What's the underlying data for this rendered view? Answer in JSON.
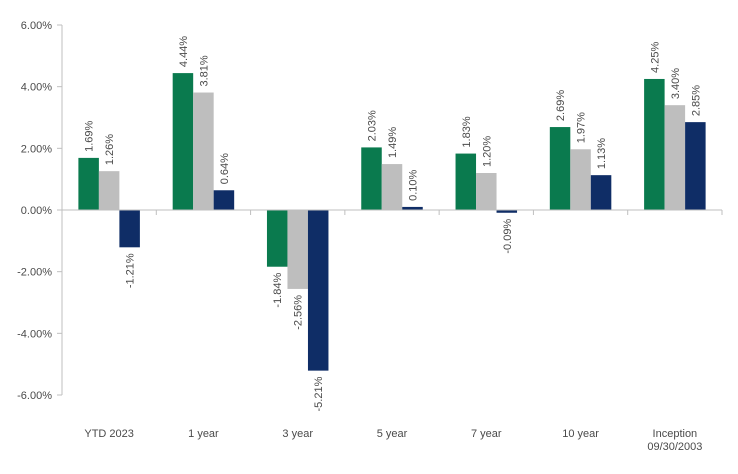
{
  "chart_data": {
    "type": "bar",
    "title": "",
    "xlabel": "",
    "ylabel": "",
    "ylim": [
      -6,
      6
    ],
    "ytick_step": 2,
    "ytick_labels": [
      "6.00%",
      "4.00%",
      "2.00%",
      "0.00%",
      "-2.00%",
      "-4.00%",
      "-6.00%"
    ],
    "grid": false,
    "legend": "none",
    "categories": [
      [
        "YTD 2023"
      ],
      [
        "1 year"
      ],
      [
        "3 year"
      ],
      [
        "5 year"
      ],
      [
        "7 year"
      ],
      [
        "10 year"
      ],
      [
        "Inception",
        "09/30/2003"
      ]
    ],
    "series": [
      {
        "color": "#0a7a4e",
        "values": [
          1.69,
          4.44,
          -1.84,
          2.03,
          1.83,
          2.69,
          4.25
        ],
        "labels": [
          "1.69%",
          "4.44%",
          "-1.84%",
          "2.03%",
          "1.83%",
          "2.69%",
          "4.25%"
        ]
      },
      {
        "color": "#bebebe",
        "values": [
          1.26,
          3.81,
          -2.56,
          1.49,
          1.2,
          1.97,
          3.4
        ],
        "labels": [
          "1.26%",
          "3.81%",
          "-2.56%",
          "1.49%",
          "1.20%",
          "1.97%",
          "3.40%"
        ]
      },
      {
        "color": "#0f2d66",
        "values": [
          -1.21,
          0.64,
          -5.21,
          0.1,
          -0.09,
          1.13,
          2.85
        ],
        "labels": [
          "-1.21%",
          "0.64%",
          "-5.21%",
          "0.10%",
          "-0.09%",
          "1.13%",
          "2.85%"
        ]
      }
    ]
  },
  "colors": {
    "axis": "#bfbfbf",
    "text": "#4a4a4a",
    "background": "#ffffff"
  }
}
